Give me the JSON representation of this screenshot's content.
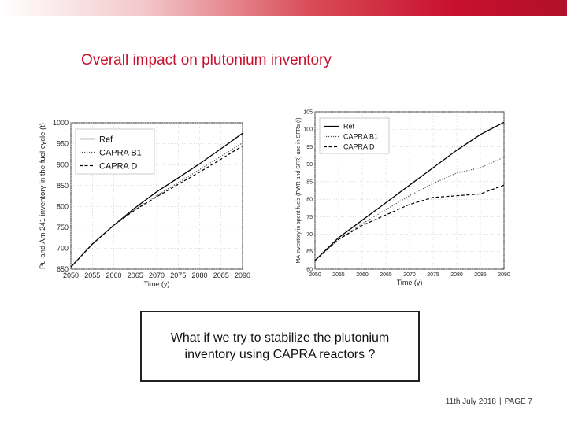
{
  "slide": {
    "title": "Overall impact on plutonium inventory",
    "callout": "What if we try to stabilize the plutonium inventory using CAPRA reactors ?",
    "footer_date": "11th July 2018",
    "footer_sep": "|",
    "footer_page": "PAGE 7",
    "accent_color": "#c8102e"
  },
  "chart_data": [
    {
      "type": "line",
      "title": "",
      "xlabel": "Time (y)",
      "ylabel": "Pu and Am 241 inventory in the fuel cycle (t)",
      "xlim": [
        2050,
        2090
      ],
      "ylim": [
        650,
        1000
      ],
      "xticks": [
        "2050",
        "2055",
        "2060",
        "2065",
        "2070",
        "2075",
        "2080",
        "2085",
        "2090"
      ],
      "yticks": [
        "650",
        "700",
        "750",
        "800",
        "850",
        "900",
        "950",
        "1000"
      ],
      "grid": true,
      "legend_position": "top-left",
      "series": [
        {
          "name": "Ref",
          "style": "solid",
          "color": "#000000",
          "x": [
            2050,
            2055,
            2060,
            2065,
            2070,
            2075,
            2080,
            2085,
            2090
          ],
          "values": [
            655,
            710,
            755,
            797,
            835,
            868,
            902,
            938,
            975
          ]
        },
        {
          "name": "CAPRA B1",
          "style": "dotted",
          "color": "#555555",
          "x": [
            2050,
            2055,
            2060,
            2065,
            2070,
            2075,
            2080,
            2085,
            2090
          ],
          "values": [
            655,
            710,
            755,
            793,
            826,
            857,
            888,
            920,
            952
          ]
        },
        {
          "name": "CAPRA D",
          "style": "dashed",
          "color": "#000000",
          "x": [
            2050,
            2055,
            2060,
            2065,
            2070,
            2075,
            2080,
            2085,
            2090
          ],
          "values": [
            655,
            710,
            755,
            792,
            823,
            853,
            882,
            913,
            945
          ]
        }
      ]
    },
    {
      "type": "line",
      "title": "",
      "xlabel": "Time (y)",
      "ylabel": "MA inventory in spent fuels (PWR and SFR) and in SFRs (t)",
      "xlim": [
        2050,
        2090
      ],
      "ylim": [
        60,
        105
      ],
      "xticks": [
        "2050",
        "2055",
        "2060",
        "2065",
        "2070",
        "2075",
        "2080",
        "2085",
        "2090"
      ],
      "yticks": [
        "60",
        "65",
        "70",
        "75",
        "80",
        "85",
        "90",
        "95",
        "100",
        "105"
      ],
      "grid": true,
      "legend_position": "top-left",
      "series": [
        {
          "name": "Ref",
          "style": "solid",
          "color": "#000000",
          "x": [
            2050,
            2055,
            2060,
            2065,
            2070,
            2075,
            2080,
            2085,
            2090
          ],
          "values": [
            62.5,
            69,
            74,
            79,
            84,
            89,
            94,
            98.5,
            102
          ]
        },
        {
          "name": "CAPRA B1",
          "style": "dotted",
          "color": "#555555",
          "x": [
            2050,
            2055,
            2060,
            2065,
            2070,
            2075,
            2080,
            2085,
            2090
          ],
          "values": [
            62.5,
            68.5,
            73,
            77,
            81,
            84.5,
            87.5,
            89,
            92
          ]
        },
        {
          "name": "CAPRA D",
          "style": "dashed",
          "color": "#000000",
          "x": [
            2050,
            2055,
            2060,
            2065,
            2070,
            2075,
            2080,
            2085,
            2090
          ],
          "values": [
            62.5,
            68.5,
            72.5,
            75.5,
            78.5,
            80.5,
            81,
            81.5,
            84
          ]
        }
      ]
    }
  ]
}
